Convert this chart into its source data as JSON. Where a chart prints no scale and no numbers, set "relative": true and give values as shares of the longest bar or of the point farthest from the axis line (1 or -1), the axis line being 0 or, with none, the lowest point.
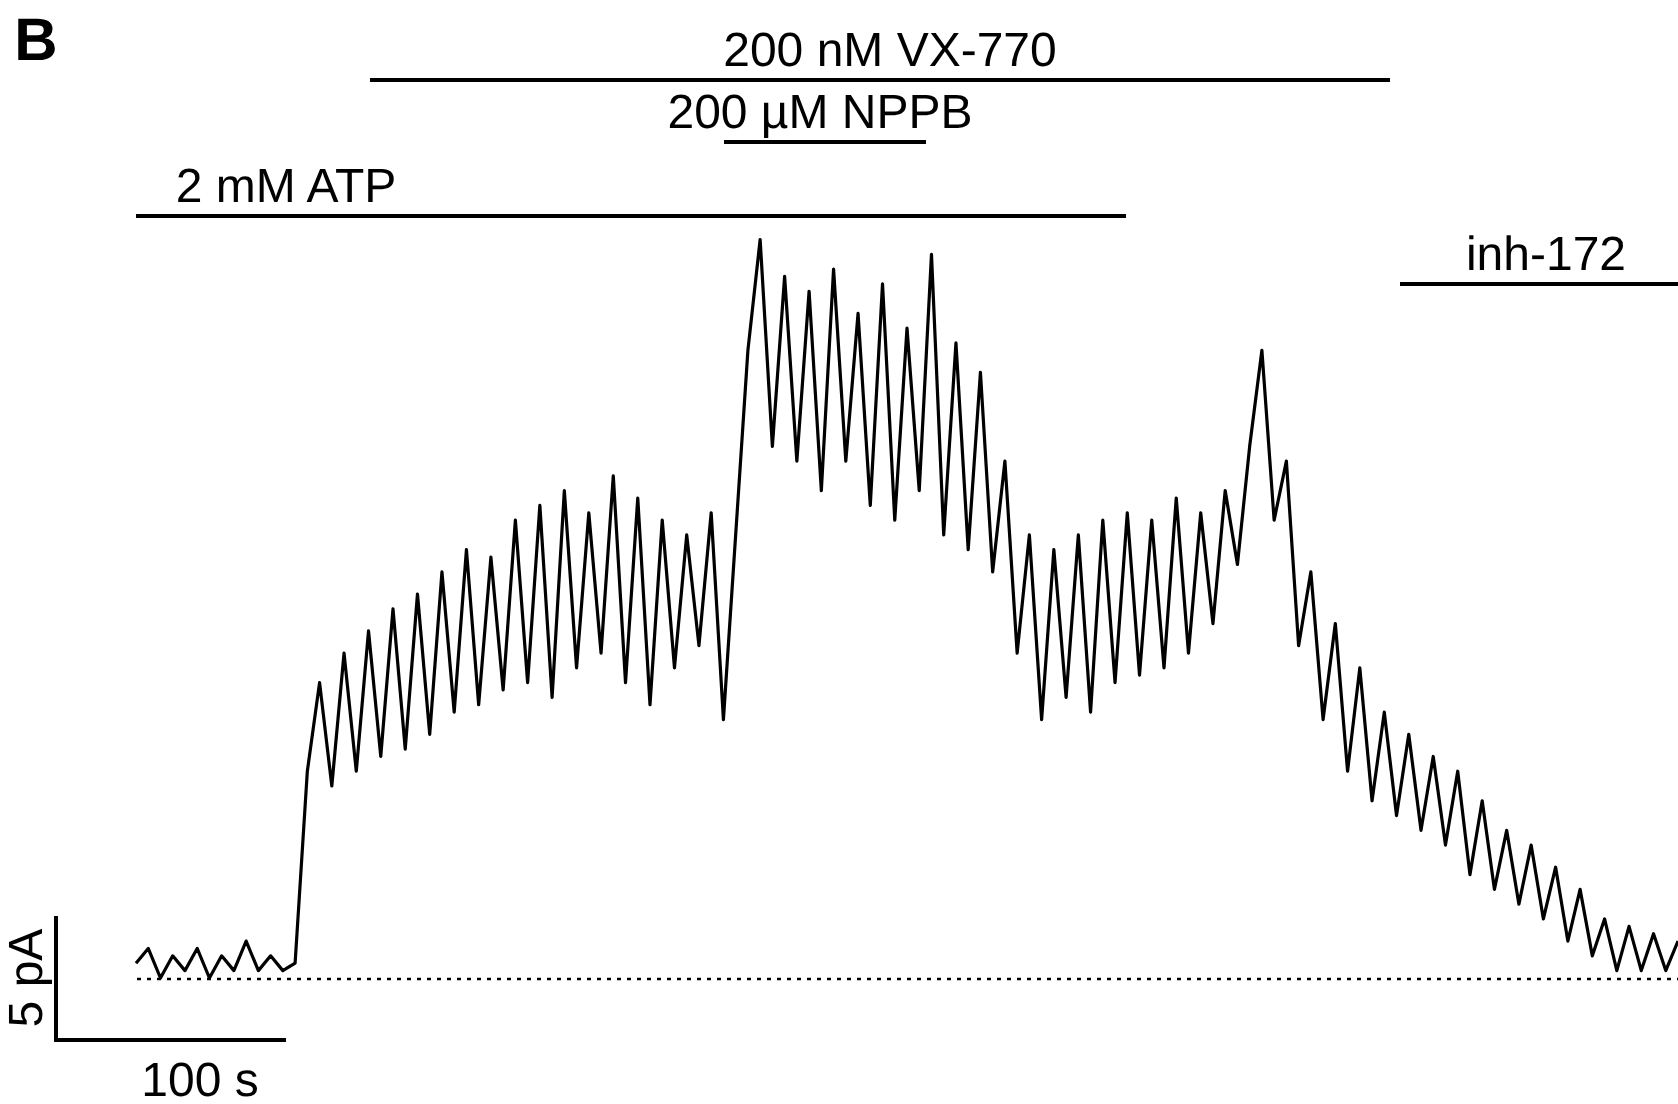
{
  "chart_data": {
    "type": "line",
    "relative": true,
    "tick_labels": false,
    "marker": "none",
    "line_style": "solid",
    "categories": [
      null,
      null,
      null,
      null,
      null,
      null,
      null,
      null,
      null,
      null,
      null,
      null,
      null,
      null,
      null,
      null,
      null,
      null,
      null,
      null,
      null,
      null,
      null,
      null,
      null,
      null,
      null,
      null,
      null,
      null,
      null,
      null,
      null,
      null,
      null,
      null,
      null,
      null,
      null,
      null,
      null,
      null,
      null,
      null,
      null,
      null,
      null,
      null,
      null,
      null,
      null,
      null,
      null,
      null,
      null,
      null,
      null,
      null,
      null,
      null,
      null,
      null,
      null,
      null,
      null,
      null,
      null,
      null,
      null,
      null,
      null,
      null,
      null,
      null,
      null,
      null,
      null,
      null,
      null,
      null,
      null,
      null,
      null,
      null,
      null,
      null,
      null,
      null,
      null,
      null,
      null,
      null,
      null,
      null,
      null,
      null,
      null,
      null,
      null,
      null,
      null,
      null,
      null,
      null,
      null,
      null,
      null,
      null,
      null,
      null,
      null,
      null,
      null,
      null,
      null,
      null,
      null,
      null,
      null,
      null,
      null,
      null,
      null,
      null,
      null,
      null,
      null
    ],
    "series": [
      {
        "color": "#000000",
        "values": [
          0.02,
          0.04,
          0.0,
          0.03,
          0.01,
          0.04,
          0.0,
          0.03,
          0.01,
          0.05,
          0.01,
          0.03,
          0.01,
          0.02,
          0.28,
          0.4,
          0.26,
          0.44,
          0.28,
          0.47,
          0.3,
          0.5,
          0.31,
          0.52,
          0.33,
          0.55,
          0.36,
          0.58,
          0.37,
          0.57,
          0.39,
          0.62,
          0.4,
          0.64,
          0.38,
          0.66,
          0.42,
          0.63,
          0.44,
          0.68,
          0.4,
          0.65,
          0.37,
          0.62,
          0.42,
          0.6,
          0.45,
          0.63,
          0.35,
          0.6,
          0.85,
          1.0,
          0.72,
          0.95,
          0.7,
          0.93,
          0.66,
          0.96,
          0.7,
          0.9,
          0.64,
          0.94,
          0.62,
          0.88,
          0.66,
          0.98,
          0.6,
          0.86,
          0.58,
          0.82,
          0.55,
          0.7,
          0.44,
          0.6,
          0.35,
          0.58,
          0.38,
          0.6,
          0.36,
          0.62,
          0.4,
          0.63,
          0.41,
          0.62,
          0.42,
          0.65,
          0.44,
          0.63,
          0.48,
          0.66,
          0.56,
          0.72,
          0.85,
          0.62,
          0.7,
          0.45,
          0.55,
          0.35,
          0.48,
          0.28,
          0.42,
          0.24,
          0.36,
          0.22,
          0.33,
          0.2,
          0.3,
          0.18,
          0.28,
          0.14,
          0.24,
          0.12,
          0.2,
          0.1,
          0.18,
          0.08,
          0.15,
          0.05,
          0.12,
          0.03,
          0.08,
          0.01,
          0.07,
          0.01,
          0.06,
          0.01,
          0.05
        ]
      }
    ],
    "annotations": [
      "200 nM VX-770",
      "200 µM NPPB",
      "2 mM ATP",
      "inh-172",
      "5 pA",
      "100 s",
      "B"
    ]
  }
}
